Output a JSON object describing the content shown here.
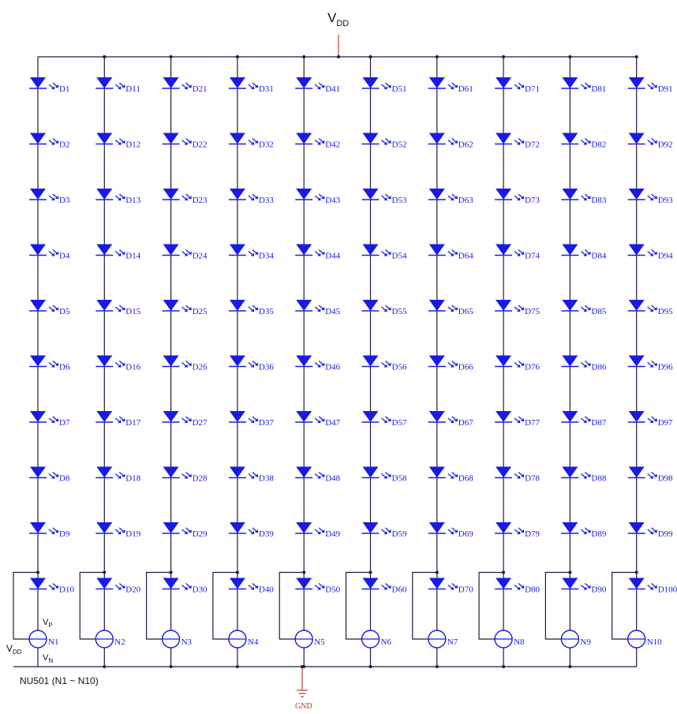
{
  "supply": {
    "label": "V",
    "sub": "DD"
  },
  "ground": {
    "label": "GND"
  },
  "driver": {
    "caption": "NU501 (N1 ~ N10)",
    "vdd_label": "V",
    "vdd_sub": "DD",
    "vp_label": "V",
    "vp_sub": "P",
    "vn_label": "V",
    "vn_sub": "N"
  },
  "columns": [
    {
      "diodes": [
        "D1",
        "D2",
        "D3",
        "D4",
        "D5",
        "D6",
        "D7",
        "D8",
        "D9",
        "D10"
      ],
      "driver": "N1"
    },
    {
      "diodes": [
        "D11",
        "D12",
        "D13",
        "D14",
        "D15",
        "D16",
        "D17",
        "D18",
        "D19",
        "D20"
      ],
      "driver": "N2"
    },
    {
      "diodes": [
        "D21",
        "D22",
        "D23",
        "D24",
        "D25",
        "D26",
        "D27",
        "D28",
        "D29",
        "D30"
      ],
      "driver": "N3"
    },
    {
      "diodes": [
        "D31",
        "D32",
        "D33",
        "D34",
        "D35",
        "D36",
        "D37",
        "D38",
        "D39",
        "D40"
      ],
      "driver": "N4"
    },
    {
      "diodes": [
        "D41",
        "D42",
        "D43",
        "D44",
        "D45",
        "D46",
        "D47",
        "D48",
        "D49",
        "D50"
      ],
      "driver": "N5"
    },
    {
      "diodes": [
        "D51",
        "D52",
        "D53",
        "D54",
        "D55",
        "D56",
        "D57",
        "D58",
        "D59",
        "D60"
      ],
      "driver": "N6"
    },
    {
      "diodes": [
        "D61",
        "D62",
        "D63",
        "D64",
        "D65",
        "D66",
        "D67",
        "D68",
        "D69",
        "D70"
      ],
      "driver": "N7"
    },
    {
      "diodes": [
        "D71",
        "D72",
        "D73",
        "D74",
        "D75",
        "D76",
        "D77",
        "D78",
        "D79",
        "D80"
      ],
      "driver": "N8"
    },
    {
      "diodes": [
        "D81",
        "D82",
        "D83",
        "D84",
        "D85",
        "D86",
        "D87",
        "D88",
        "D89",
        "D90"
      ],
      "driver": "N9"
    },
    {
      "diodes": [
        "D91",
        "D92",
        "D93",
        "D94",
        "D95",
        "D96",
        "D97",
        "D98",
        "D99",
        "D100"
      ],
      "driver": "N10"
    }
  ],
  "colors": {
    "component": "#1a1ae6",
    "wire": "#1c1c3c",
    "supply": "#c0392b"
  }
}
